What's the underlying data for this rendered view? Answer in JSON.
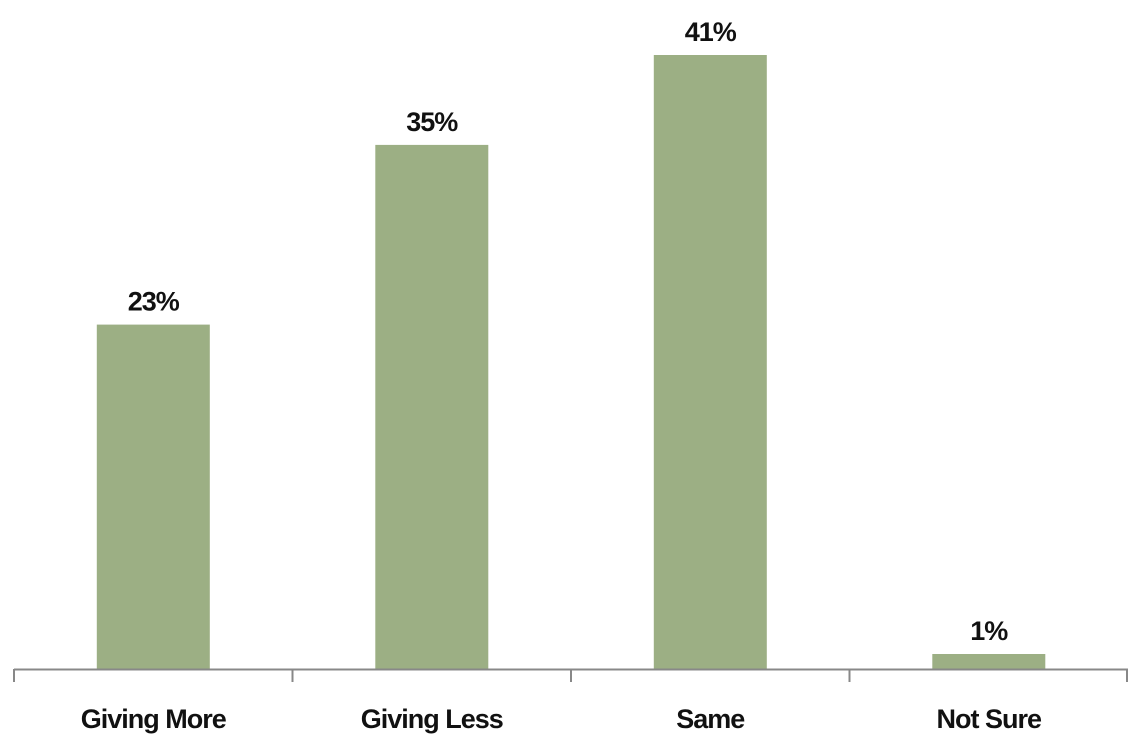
{
  "chart_data": {
    "type": "bar",
    "title": "",
    "xlabel": "",
    "ylabel": "",
    "categories": [
      "Giving More",
      "Giving Less",
      "Same",
      "Not Sure"
    ],
    "values": [
      23,
      35,
      41,
      1
    ],
    "value_labels": [
      "23%",
      "35%",
      "41%",
      "1%"
    ],
    "ylim": [
      0,
      41
    ],
    "grid": false,
    "legend": "none",
    "bar_color": "#9caf84",
    "axis_color": "#888888"
  }
}
